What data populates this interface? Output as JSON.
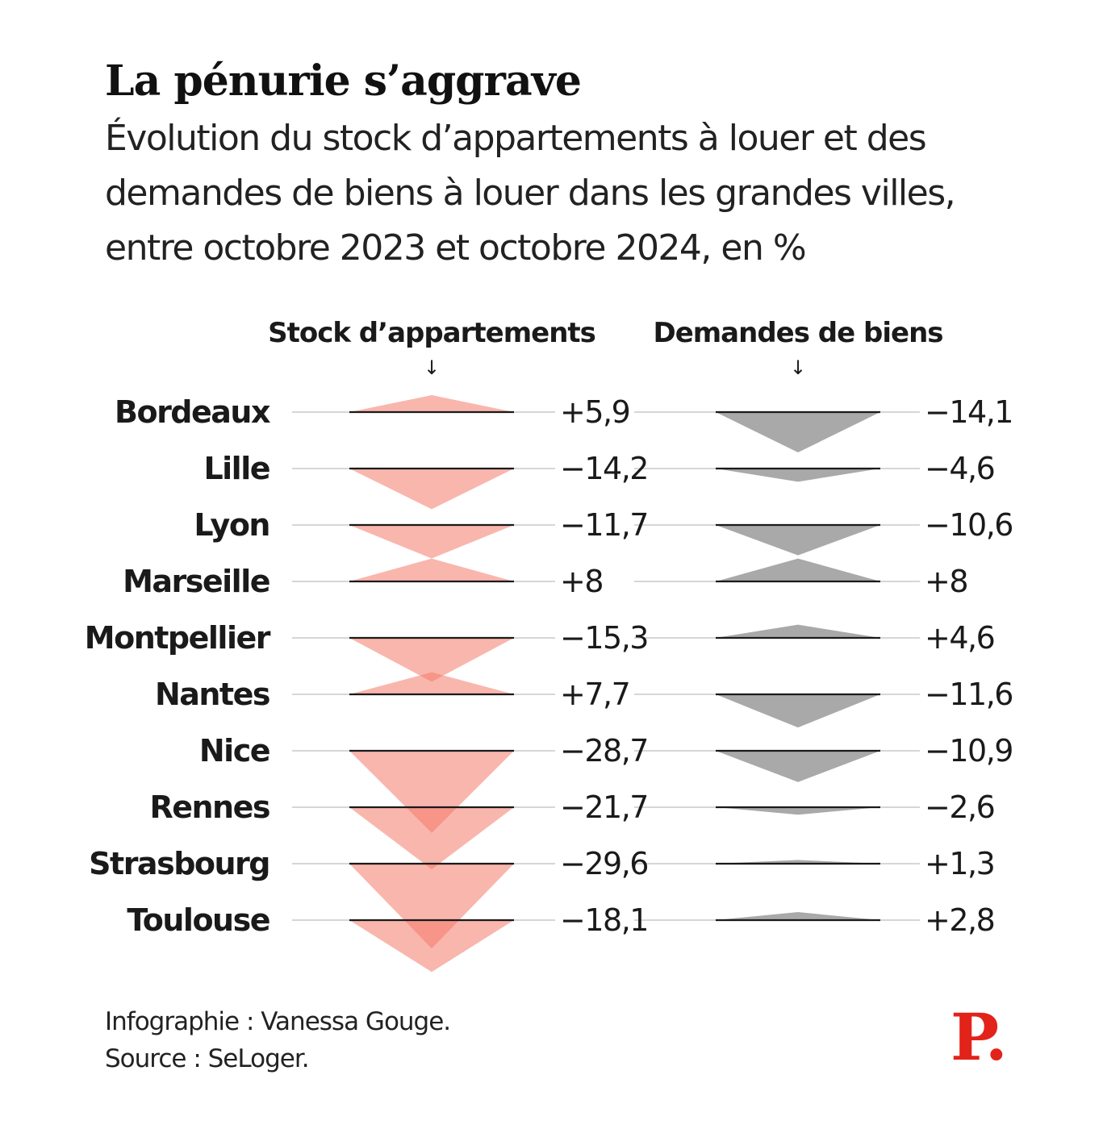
{
  "chart_data": {
    "type": "triangle-divergent",
    "title": "La pénurie s’aggrave",
    "subtitle": "Évolution du stock d’appartements à louer et des demandes de biens à louer dans les grandes villes, entre octobre 2023 et octobre 2024, en %",
    "categories": [
      "Bordeaux",
      "Lille",
      "Lyon",
      "Marseille",
      "Montpellier",
      "Nantes",
      "Nice",
      "Rennes",
      "Strasbourg",
      "Toulouse"
    ],
    "series": [
      {
        "name": "Stock d’appartements",
        "color": "#f47a6a",
        "values": [
          5.9,
          -14.2,
          -11.7,
          8,
          -15.3,
          7.7,
          -28.7,
          -21.7,
          -29.6,
          -18.1
        ],
        "labels": [
          "+5,9",
          "−14,2",
          "−11,7",
          "+8",
          "−15,3",
          "+7,7",
          "−28,7",
          "−21,7",
          "−29,6",
          "−18,1"
        ]
      },
      {
        "name": "Demandes de biens",
        "color": "#6f6f6f",
        "values": [
          -14.1,
          -4.6,
          -10.6,
          8,
          4.6,
          -11.6,
          -10.9,
          -2.6,
          1.3,
          2.8
        ],
        "labels": [
          "−14,1",
          "−4,6",
          "−10,6",
          "+8",
          "+4,6",
          "−11,6",
          "−10,9",
          "−2,6",
          "+1,3",
          "+2,8"
        ]
      }
    ],
    "arrow": "↓"
  },
  "footer": {
    "credit": "Infographie : Vanessa Gouge.",
    "source": "Source : SeLoger."
  },
  "logo": {
    "text": "P."
  }
}
